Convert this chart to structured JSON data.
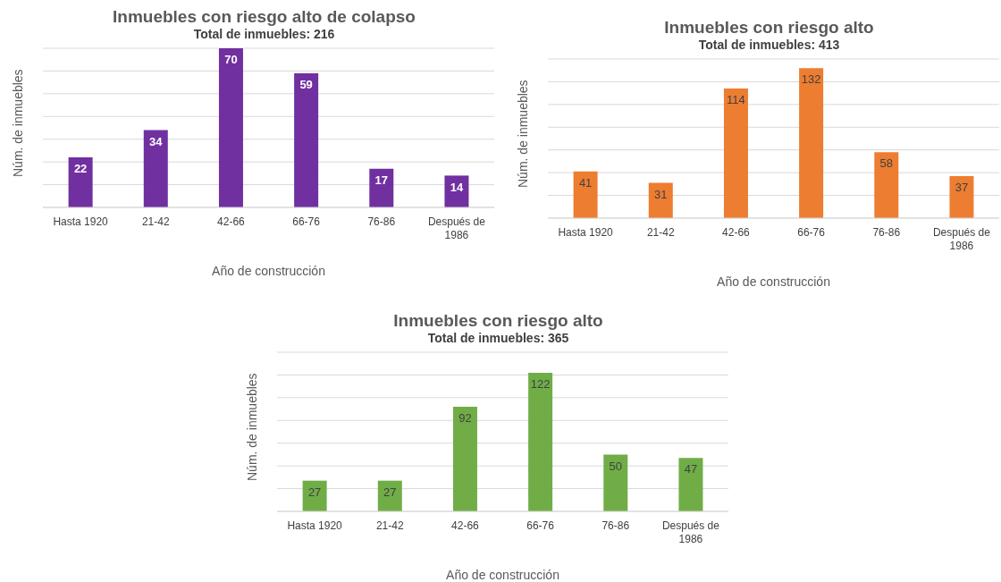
{
  "chart_data": [
    {
      "type": "bar",
      "title": "Inmuebles con riesgo alto de colapso",
      "subtitle": "Total de inmuebles: 216",
      "xlabel": "Año de construcción",
      "ylabel": "Núm. de inmuebles",
      "categories": [
        "Hasta 1920",
        "21-42",
        "42-66",
        "66-76",
        "76-86",
        "Después de 1986"
      ],
      "values": [
        22,
        34,
        70,
        59,
        17,
        14
      ],
      "color": "#7030a0",
      "grid": "y",
      "tick_labels": "x",
      "data_labels": true
    },
    {
      "type": "bar",
      "title": "Inmuebles con riesgo alto",
      "subtitle": "Total de inmuebles: 413",
      "xlabel": "Año de construcción",
      "ylabel": "Núm. de inmuebles",
      "categories": [
        "Hasta 1920",
        "21-42",
        "42-66",
        "66-76",
        "76-86",
        "Después de 1986"
      ],
      "values": [
        41,
        31,
        114,
        132,
        58,
        37
      ],
      "color": "#ed7d31",
      "grid": "y",
      "tick_labels": "x",
      "data_labels": true
    },
    {
      "type": "bar",
      "title": "Inmuebles con riesgo alto",
      "subtitle": "Total de inmuebles: 365",
      "xlabel": "Año de construcción",
      "ylabel": "Núm. de inmuebles",
      "categories": [
        "Hasta 1920",
        "21-42",
        "42-66",
        "66-76",
        "76-86",
        "Después de 1986"
      ],
      "values": [
        27,
        27,
        92,
        122,
        50,
        47
      ],
      "color": "#70ad47",
      "grid": "y",
      "tick_labels": "x",
      "data_labels": true
    }
  ]
}
